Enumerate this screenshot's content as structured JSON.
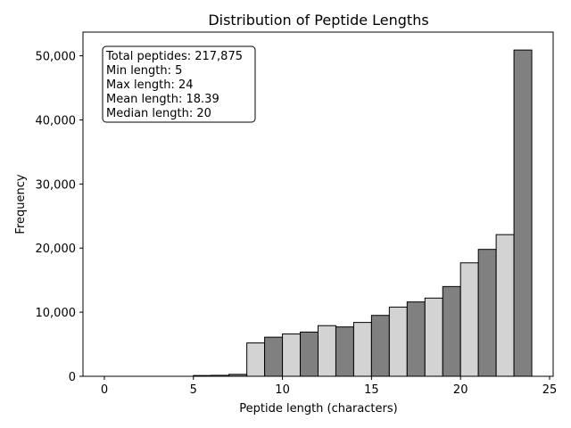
{
  "chart_data": {
    "type": "bar",
    "title": "Distribution of Peptide Lengths",
    "xlabel": "Peptide length (characters)",
    "ylabel": "Frequency",
    "xlim": [
      -1.2,
      25.2
    ],
    "ylim": [
      0,
      53700
    ],
    "x_ticks": [
      0,
      5,
      10,
      15,
      20,
      25
    ],
    "y_ticks": [
      0,
      10000,
      20000,
      30000,
      40000,
      50000
    ],
    "x_tick_labels": [
      "0",
      "5",
      "10",
      "15",
      "20",
      "25"
    ],
    "y_tick_labels": [
      "0",
      "10,000",
      "20,000",
      "30,000",
      "40,000",
      "50,000"
    ],
    "bin_width": 1,
    "bins": [
      {
        "x0": 0,
        "x1": 1,
        "value": 0,
        "color": "#d3d3d3"
      },
      {
        "x0": 1,
        "x1": 2,
        "value": 0,
        "color": "#808080"
      },
      {
        "x0": 2,
        "x1": 3,
        "value": 0,
        "color": "#d3d3d3"
      },
      {
        "x0": 3,
        "x1": 4,
        "value": 0,
        "color": "#808080"
      },
      {
        "x0": 4,
        "x1": 5,
        "value": 0,
        "color": "#d3d3d3"
      },
      {
        "x0": 5,
        "x1": 6,
        "value": 120,
        "color": "#808080"
      },
      {
        "x0": 6,
        "x1": 7,
        "value": 150,
        "color": "#d3d3d3"
      },
      {
        "x0": 7,
        "x1": 8,
        "value": 300,
        "color": "#808080"
      },
      {
        "x0": 8,
        "x1": 9,
        "value": 5200,
        "color": "#d3d3d3"
      },
      {
        "x0": 9,
        "x1": 10,
        "value": 6100,
        "color": "#808080"
      },
      {
        "x0": 10,
        "x1": 11,
        "value": 6600,
        "color": "#d3d3d3"
      },
      {
        "x0": 11,
        "x1": 12,
        "value": 6900,
        "color": "#808080"
      },
      {
        "x0": 12,
        "x1": 13,
        "value": 7900,
        "color": "#d3d3d3"
      },
      {
        "x0": 13,
        "x1": 14,
        "value": 7700,
        "color": "#808080"
      },
      {
        "x0": 14,
        "x1": 15,
        "value": 8400,
        "color": "#d3d3d3"
      },
      {
        "x0": 15,
        "x1": 16,
        "value": 9500,
        "color": "#808080"
      },
      {
        "x0": 16,
        "x1": 17,
        "value": 10800,
        "color": "#d3d3d3"
      },
      {
        "x0": 17,
        "x1": 18,
        "value": 11600,
        "color": "#808080"
      },
      {
        "x0": 18,
        "x1": 19,
        "value": 12200,
        "color": "#d3d3d3"
      },
      {
        "x0": 19,
        "x1": 20,
        "value": 14000,
        "color": "#808080"
      },
      {
        "x0": 20,
        "x1": 21,
        "value": 17700,
        "color": "#d3d3d3"
      },
      {
        "x0": 21,
        "x1": 22,
        "value": 19800,
        "color": "#808080"
      },
      {
        "x0": 22,
        "x1": 23,
        "value": 22100,
        "color": "#d3d3d3"
      },
      {
        "x0": 23,
        "x1": 24,
        "value": 50900,
        "color": "#808080"
      }
    ],
    "annotation_lines": [
      "Total peptides: 217,875",
      "Min length: 5",
      "Max length: 24",
      "Mean length: 18.39",
      "Median length: 20"
    ],
    "annotation_placement": "top-left",
    "grid": false,
    "legend": "none"
  }
}
